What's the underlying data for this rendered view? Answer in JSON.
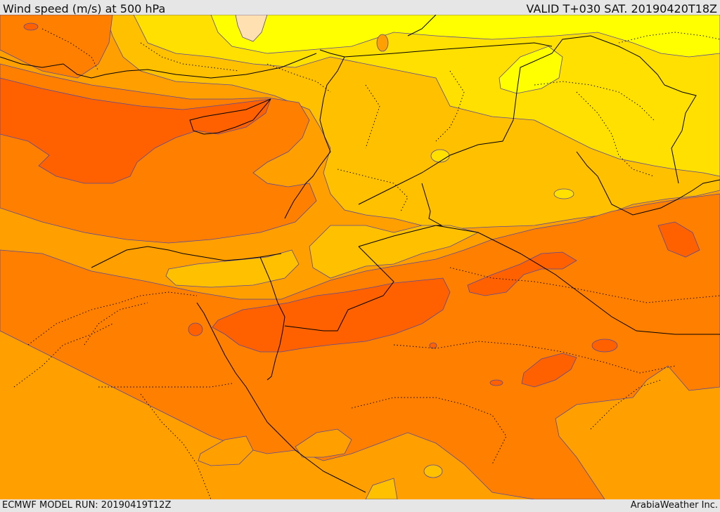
{
  "header": {
    "title": "Wind speed (m/s) at 500 hPa",
    "valid": "VALID T+030 SAT. 20190420T18Z"
  },
  "footer": {
    "model_run": "ECMWF MODEL RUN: 20190419T12Z",
    "credit": "ArabiaWeather Inc."
  },
  "palette": {
    "very_light": "#ffe0b0",
    "bright_yellow": "#ffff00",
    "yellow": "#ffe000",
    "gold": "#ffc000",
    "amber": "#ffa000",
    "orange": "#ff8000",
    "dark_orange": "#ff6000",
    "contour": "#5a4a9a",
    "boundary": "#000000"
  }
}
